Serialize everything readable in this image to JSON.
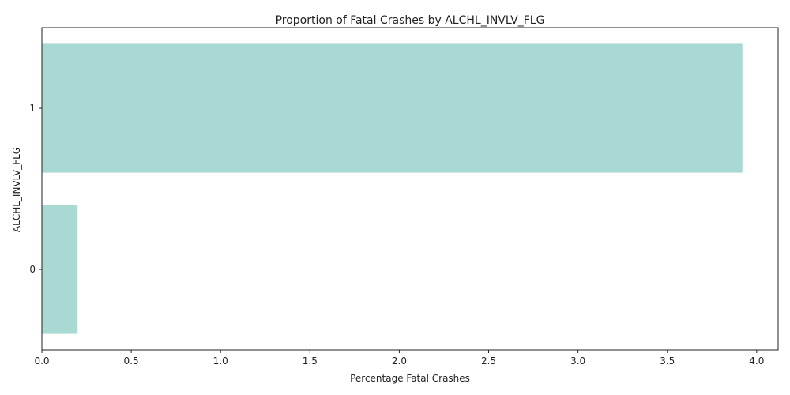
{
  "chart_data": {
    "type": "bar",
    "orientation": "horizontal",
    "title": "Proportion of Fatal Crashes by ALCHL_INVLV_FLG",
    "xlabel": "Percentage Fatal Crashes",
    "ylabel": "ALCHL_INVLV_FLG",
    "categories": [
      "1",
      "0"
    ],
    "values": [
      3.92,
      0.2
    ],
    "xlim": [
      0,
      4.12
    ],
    "xticks": [
      "0.0",
      "0.5",
      "1.0",
      "1.5",
      "2.0",
      "2.5",
      "3.0",
      "3.5",
      "4.0"
    ],
    "bar_color": "#a8dad3",
    "grid": false,
    "legend": "none"
  }
}
